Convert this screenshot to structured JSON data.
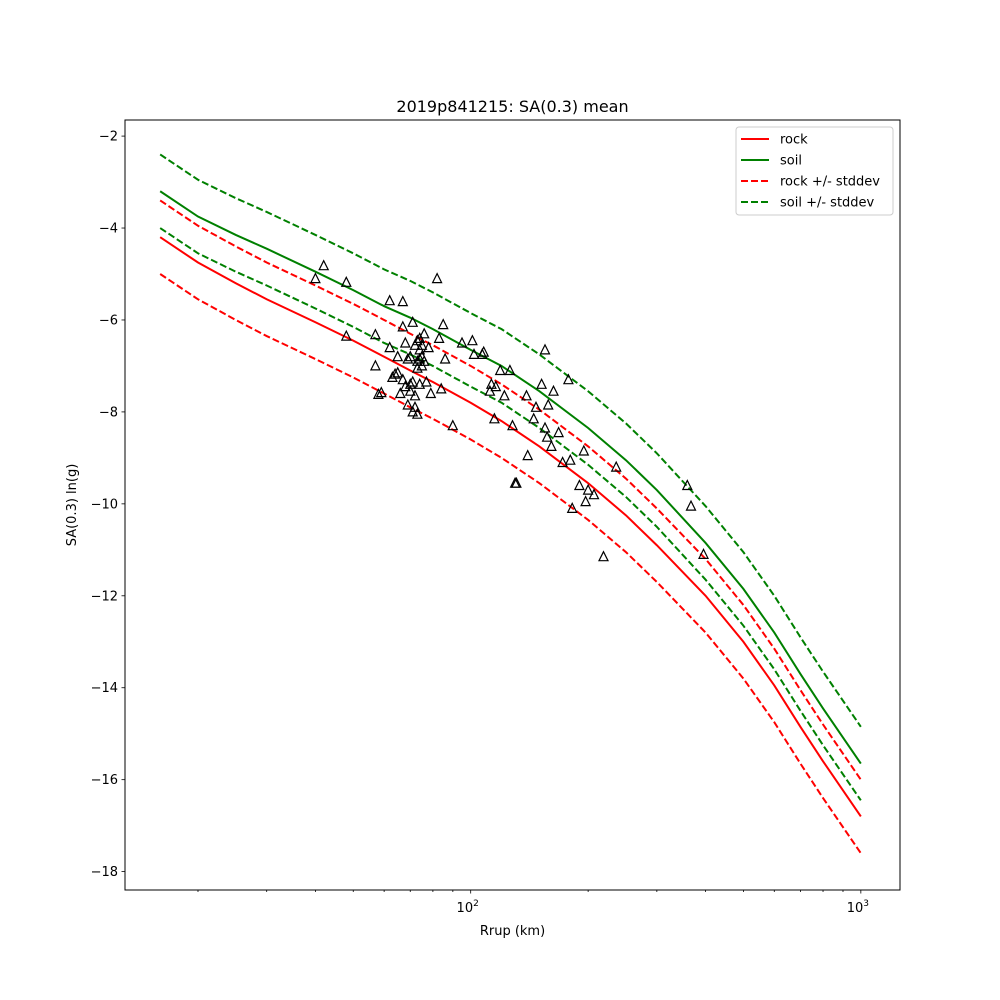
{
  "chart_data": {
    "type": "line",
    "title": "2019p841215: SA(0.3) mean",
    "xlabel": "Rrup (km)",
    "ylabel": "SA(0.3) ln(g)",
    "xscale": "log",
    "xlim": [
      13,
      1260
    ],
    "ylim": [
      -18.4,
      -1.65
    ],
    "x_ticks": [
      {
        "value": 100,
        "base": "10",
        "exp": "2"
      },
      {
        "value": 1000,
        "base": "10",
        "exp": "3"
      }
    ],
    "y_ticks": [
      -18,
      -16,
      -14,
      -12,
      -10,
      -8,
      -6,
      -4,
      -2
    ],
    "grid": false,
    "legend_position": "top-right",
    "colors": {
      "rock": "#ff0000",
      "soil": "#008000",
      "points": "#000000"
    },
    "curve_x": [
      16,
      20,
      25,
      30,
      40,
      50,
      60,
      70,
      80,
      100,
      120,
      150,
      200,
      250,
      300,
      400,
      500,
      600,
      700,
      800,
      1000
    ],
    "series": [
      {
        "name": "rock",
        "style": "solid",
        "color": "#ff0000",
        "values": [
          -4.2,
          -4.75,
          -5.2,
          -5.55,
          -6.05,
          -6.45,
          -6.8,
          -7.1,
          -7.35,
          -7.8,
          -8.2,
          -8.75,
          -9.55,
          -10.25,
          -10.9,
          -12.0,
          -13.0,
          -13.95,
          -14.85,
          -15.6,
          -16.8
        ]
      },
      {
        "name": "soil",
        "style": "solid",
        "color": "#008000",
        "values": [
          -3.2,
          -3.75,
          -4.15,
          -4.45,
          -4.95,
          -5.35,
          -5.7,
          -5.95,
          -6.2,
          -6.65,
          -7.0,
          -7.55,
          -8.35,
          -9.05,
          -9.7,
          -10.85,
          -11.85,
          -12.8,
          -13.7,
          -14.45,
          -15.65
        ]
      },
      {
        "name": "rock +/- stddev",
        "style": "dashed",
        "color": "#ff0000",
        "values": [
          -3.4,
          -3.95,
          -4.4,
          -4.75,
          -5.25,
          -5.65,
          -6.0,
          -6.3,
          -6.55,
          -7.0,
          -7.4,
          -7.95,
          -8.75,
          -9.45,
          -10.1,
          -11.2,
          -12.2,
          -13.15,
          -14.05,
          -14.8,
          -16.0
        ]
      },
      {
        "name": "",
        "style": "dashed",
        "color": "#ff0000",
        "values": [
          -5.0,
          -5.55,
          -6.0,
          -6.35,
          -6.85,
          -7.25,
          -7.6,
          -7.9,
          -8.15,
          -8.6,
          -9.0,
          -9.55,
          -10.35,
          -11.05,
          -11.7,
          -12.8,
          -13.8,
          -14.75,
          -15.65,
          -16.4,
          -17.6
        ]
      },
      {
        "name": "soil +/- stddev",
        "style": "dashed",
        "color": "#008000",
        "values": [
          -2.4,
          -2.95,
          -3.35,
          -3.65,
          -4.15,
          -4.55,
          -4.9,
          -5.15,
          -5.4,
          -5.85,
          -6.2,
          -6.75,
          -7.55,
          -8.25,
          -8.9,
          -10.05,
          -11.05,
          -12.0,
          -12.9,
          -13.65,
          -14.85
        ]
      },
      {
        "name": "",
        "style": "dashed",
        "color": "#008000",
        "values": [
          -4.0,
          -4.55,
          -4.95,
          -5.25,
          -5.75,
          -6.15,
          -6.5,
          -6.75,
          -7.0,
          -7.45,
          -7.8,
          -8.35,
          -9.15,
          -9.85,
          -10.5,
          -11.65,
          -12.65,
          -13.6,
          -14.5,
          -15.25,
          -16.45
        ]
      }
    ],
    "legend": [
      {
        "label": "rock",
        "style": "solid",
        "color": "#ff0000"
      },
      {
        "label": "soil",
        "style": "solid",
        "color": "#008000"
      },
      {
        "label": "rock +/- stddev",
        "style": "dashed",
        "color": "#ff0000"
      },
      {
        "label": "soil +/- stddev",
        "style": "dashed",
        "color": "#008000"
      }
    ],
    "observations": {
      "marker": "triangle",
      "x": [
        40,
        42,
        48,
        48,
        57,
        57,
        58,
        59,
        62,
        62,
        63,
        64,
        65,
        65,
        66,
        67,
        67,
        67,
        68,
        68,
        69,
        69,
        70,
        70,
        70,
        71,
        71,
        71,
        72,
        72,
        72,
        73,
        73,
        73,
        73,
        74,
        74,
        74,
        74,
        75,
        75,
        75,
        76,
        76,
        77,
        78,
        79,
        82,
        83,
        84,
        85,
        86,
        90,
        95,
        101,
        102,
        107,
        108,
        112,
        113,
        115,
        116,
        119,
        122,
        126,
        128,
        130,
        131,
        139,
        140,
        145,
        147,
        152,
        155,
        155,
        157,
        158,
        161,
        163,
        168,
        172,
        178,
        180,
        182,
        190,
        195,
        197,
        200,
        207,
        219,
        236,
        359,
        367,
        395
      ],
      "y": [
        -5.1,
        -4.82,
        -5.18,
        -6.35,
        -7.0,
        -6.32,
        -7.62,
        -7.58,
        -6.6,
        -5.58,
        -7.25,
        -7.18,
        -7.15,
        -6.8,
        -7.6,
        -6.15,
        -5.6,
        -7.3,
        -7.45,
        -6.5,
        -7.85,
        -6.85,
        -7.55,
        -6.8,
        -7.4,
        -8.0,
        -6.05,
        -7.35,
        -6.55,
        -7.65,
        -7.9,
        -6.45,
        -7.05,
        -6.9,
        -8.05,
        -6.65,
        -6.4,
        -6.85,
        -7.4,
        -6.55,
        -6.8,
        -7.0,
        -6.3,
        -6.9,
        -7.35,
        -6.6,
        -7.6,
        -5.1,
        -6.4,
        -7.5,
        -6.1,
        -6.85,
        -8.3,
        -6.5,
        -6.45,
        -6.75,
        -6.75,
        -6.7,
        -7.55,
        -7.4,
        -8.15,
        -7.45,
        -7.1,
        -7.65,
        -7.1,
        -8.3,
        -9.55,
        -9.55,
        -7.65,
        -8.95,
        -8.15,
        -7.9,
        -7.4,
        -6.65,
        -8.35,
        -8.55,
        -7.85,
        -8.75,
        -7.55,
        -8.45,
        -9.1,
        -7.3,
        -9.05,
        -10.1,
        -9.6,
        -8.85,
        -9.95,
        -9.7,
        -9.8,
        -11.15,
        -9.2,
        -9.6,
        -10.05,
        -11.1
      ]
    }
  }
}
